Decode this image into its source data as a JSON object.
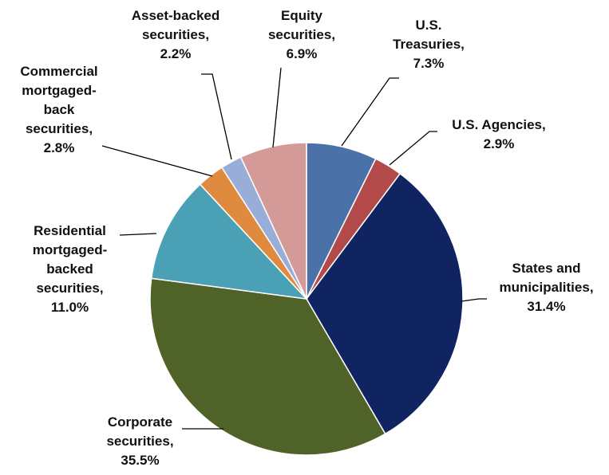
{
  "chart_data": {
    "type": "pie",
    "categories": [
      "U.S. Treasuries,",
      "U.S. Agencies,",
      "States and municipalities,",
      "Corporate securities,",
      "Residential mortgaged-backed securities,",
      "Commercial mortgaged-back securities,",
      "Asset-backed securities,",
      "Equity securities,"
    ],
    "values": [
      7.3,
      2.9,
      31.4,
      35.5,
      11.0,
      2.8,
      2.2,
      6.9
    ],
    "value_labels": [
      "7.3%",
      "2.9%",
      "31.4%",
      "35.5%",
      "11.0%",
      "2.8%",
      "2.2%",
      "6.9%"
    ],
    "colors": [
      "#4a72a8",
      "#b14a48",
      "#0f2460",
      "#4f6228",
      "#4aa0b5",
      "#e08a40",
      "#98aed8",
      "#d49a98"
    ]
  }
}
